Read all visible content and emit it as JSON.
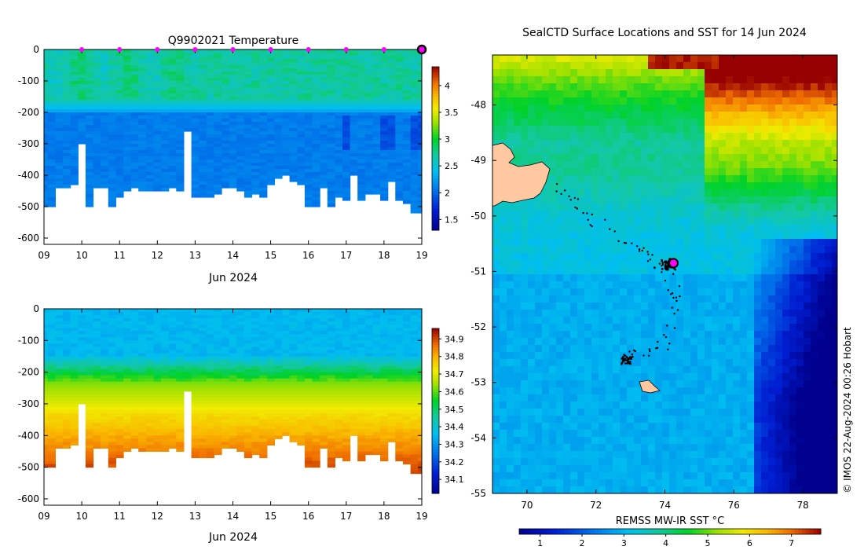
{
  "colors": {
    "background": "#ffffff",
    "land_fill": "#ffc8a0",
    "track_dots": "#000000",
    "marker_magenta": "#ff00ff"
  },
  "chart_data": [
    {
      "id": "temp_section",
      "type": "heatmap",
      "title": "Q9902021  Temperature",
      "xlabel": "Jun 2024",
      "ylabel": "",
      "xlim": [
        9,
        19
      ],
      "ylim": [
        -620,
        0
      ],
      "x_ticks": [
        "09",
        "10",
        "11",
        "12",
        "13",
        "14",
        "15",
        "16",
        "17",
        "18",
        "19"
      ],
      "y_ticks": [
        "0",
        "-100",
        "-200",
        "-300",
        "-400",
        "-500",
        "-600"
      ],
      "colorbar_ticks": [
        "1.5",
        "2",
        "2.5",
        "3",
        "3.5",
        "4"
      ],
      "colorbar_range": [
        1.3,
        4.35
      ],
      "profile_days": [
        9.0,
        9.2,
        9.4,
        9.6,
        9.8,
        10.0,
        10.2,
        10.4,
        10.6,
        10.8,
        11.0,
        11.2,
        11.4,
        11.6,
        11.8,
        12.0,
        12.2,
        12.4,
        12.6,
        12.8,
        13.0,
        13.2,
        13.4,
        13.6,
        13.8,
        14.0,
        14.2,
        14.4,
        14.6,
        14.8,
        15.0,
        15.2,
        15.4,
        15.6,
        15.8,
        16.0,
        16.2,
        16.4,
        16.6,
        16.8,
        17.0,
        17.2,
        17.4,
        17.6,
        17.8,
        18.0,
        18.2,
        18.4,
        18.6,
        18.8,
        19.0
      ],
      "profile_max_depth": [
        500,
        500,
        435,
        435,
        428,
        300,
        500,
        440,
        440,
        500,
        470,
        445,
        440,
        445,
        450,
        450,
        445,
        440,
        445,
        255,
        470,
        465,
        465,
        460,
        440,
        440,
        445,
        465,
        455,
        465,
        430,
        405,
        400,
        420,
        425,
        500,
        500,
        440,
        500,
        465,
        475,
        400,
        480,
        455,
        460,
        475,
        420,
        480,
        485,
        520,
        520
      ],
      "surface_markers_days": [
        10,
        11,
        12,
        13,
        14,
        15,
        16,
        17,
        18
      ],
      "current_marker_day": 19,
      "mixed_layer_value": 2.7,
      "deep_value": 2.05
    },
    {
      "id": "salinity_section",
      "type": "heatmap",
      "title": "",
      "xlabel": "Jun 2024",
      "ylabel": "",
      "xlim": [
        9,
        19
      ],
      "ylim": [
        -620,
        0
      ],
      "x_ticks": [
        "09",
        "10",
        "11",
        "12",
        "13",
        "14",
        "15",
        "16",
        "17",
        "18",
        "19"
      ],
      "y_ticks": [
        "0",
        "-100",
        "-200",
        "-300",
        "-400",
        "-500",
        "-600"
      ],
      "colorbar_ticks": [
        "34.1",
        "34.2",
        "34.3",
        "34.4",
        "34.5",
        "34.6",
        "34.7",
        "34.8",
        "34.9"
      ],
      "colorbar_range": [
        34.02,
        34.96
      ],
      "surface_value": 34.35,
      "deep_value": 34.85
    },
    {
      "id": "sst_map",
      "type": "heatmap",
      "title": "SealCTD Surface Locations and SST for 14 Jun 2024",
      "xlabel": "",
      "ylabel": "",
      "xlim": [
        69,
        79
      ],
      "ylim": [
        -55,
        -47.1
      ],
      "x_ticks": [
        "70",
        "72",
        "74",
        "76",
        "78"
      ],
      "y_ticks": [
        "-48",
        "-49",
        "-50",
        "-51",
        "-52",
        "-53",
        "-54",
        "-55"
      ],
      "colorbar_label": "REMSS MW-IR SST °C",
      "colorbar_ticks": [
        "1",
        "2",
        "3",
        "4",
        "5",
        "6",
        "7"
      ],
      "colorbar_range": [
        0.5,
        7.7
      ],
      "latest_position": {
        "lon": 74.25,
        "lat": -50.85
      },
      "track_clusters": [
        {
          "lon": 74.1,
          "lat": -50.88,
          "n": 70,
          "spread": 0.25
        },
        {
          "lon": 72.9,
          "lat": -52.58,
          "n": 40,
          "spread": 0.22
        }
      ],
      "track_path": [
        [
          70.9,
          -49.35
        ],
        [
          71.3,
          -49.7
        ],
        [
          71.8,
          -50.0
        ],
        [
          72.4,
          -50.25
        ],
        [
          73.0,
          -50.45
        ],
        [
          73.5,
          -50.7
        ],
        [
          73.9,
          -50.9
        ],
        [
          74.2,
          -51.1
        ],
        [
          74.3,
          -51.5
        ],
        [
          74.2,
          -52.0
        ],
        [
          73.9,
          -52.3
        ],
        [
          73.4,
          -52.5
        ],
        [
          72.9,
          -52.6
        ]
      ],
      "credit": "© IMOS 22-Aug-2024 00:26 Hobart"
    }
  ]
}
